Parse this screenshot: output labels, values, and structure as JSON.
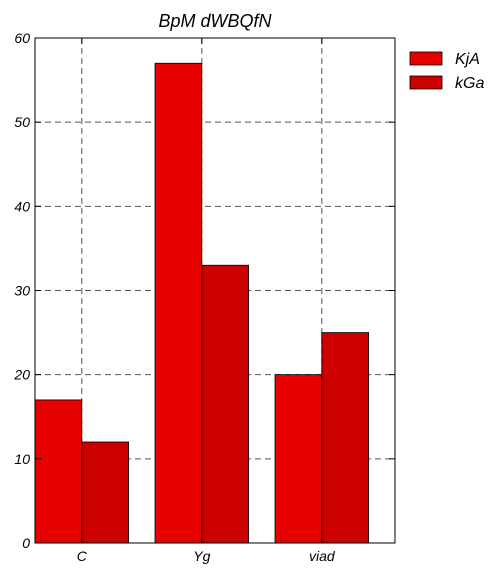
{
  "chart_data": {
    "type": "bar",
    "title": "BpM dWBQfN",
    "xlabel": "",
    "ylabel": "",
    "categories": [
      "C",
      "Yg",
      "viad"
    ],
    "series": [
      {
        "name": "KjA",
        "values": [
          17,
          57,
          20
        ],
        "color": "#e60000"
      },
      {
        "name": "kGa",
        "values": [
          12,
          33,
          25
        ],
        "color": "#cc0000"
      }
    ],
    "ylim": [
      0,
      60
    ],
    "yticks": [
      0,
      10,
      20,
      30,
      40,
      50,
      60
    ],
    "grid": true,
    "legend_position": "top-right, outside plot"
  }
}
